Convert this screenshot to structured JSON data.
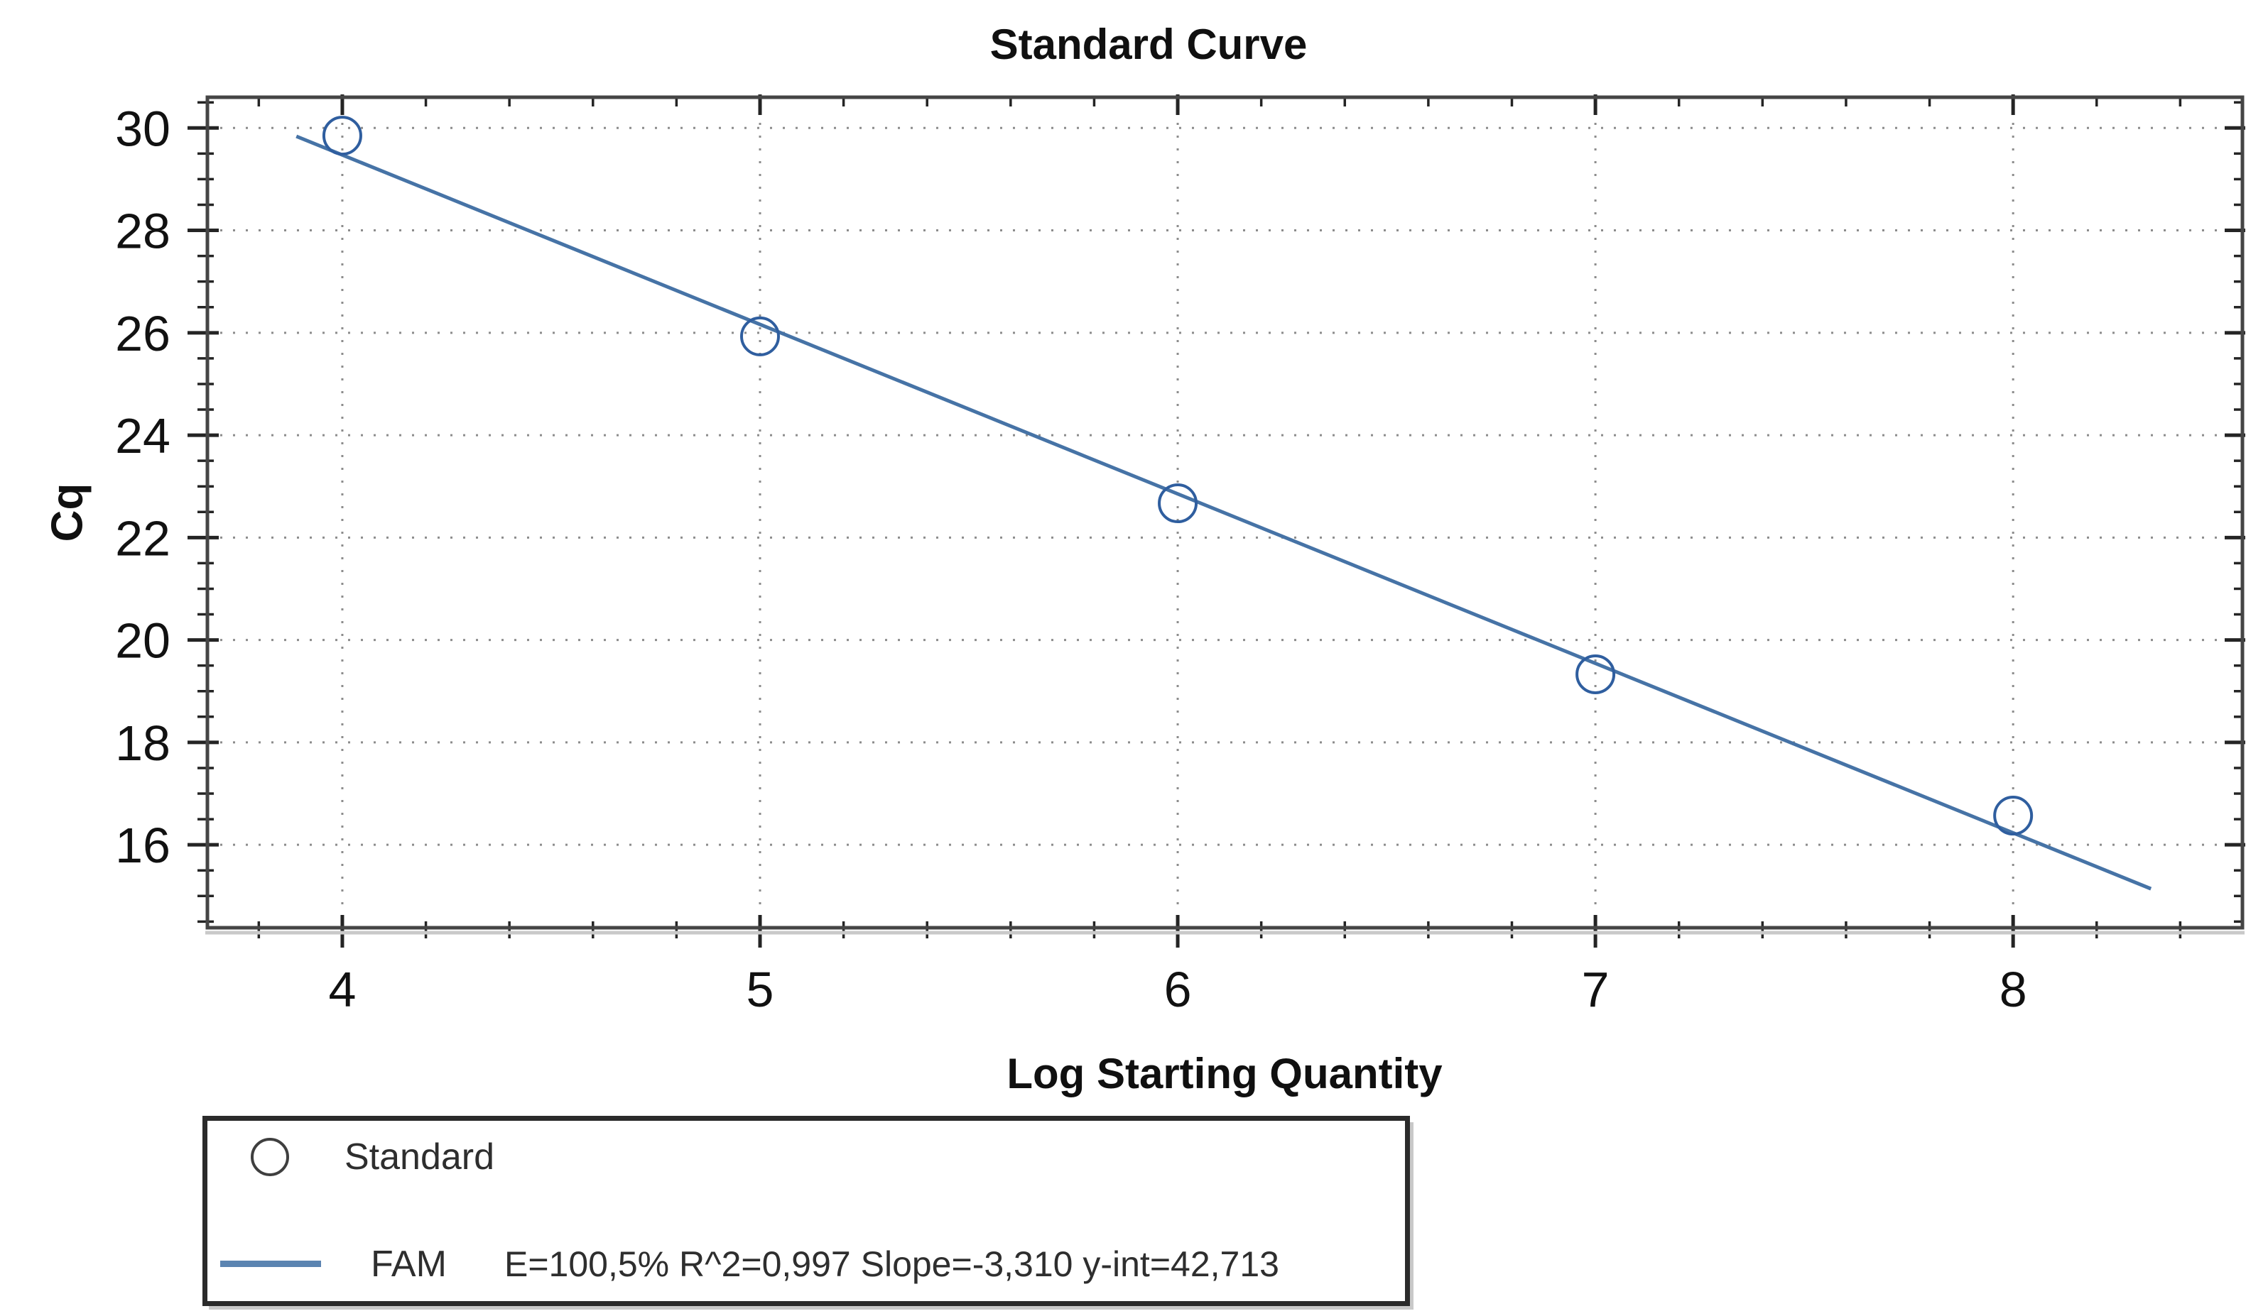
{
  "title": "Standard Curve",
  "chart_data": {
    "type": "scatter",
    "title": "Standard Curve",
    "xlabel": "Log Starting Quantity",
    "ylabel": "Cq",
    "x_range": [
      3.677,
      8.549
    ],
    "y_range": [
      14.38,
      30.6
    ],
    "x_major_ticks": [
      4,
      5,
      6,
      7,
      8
    ],
    "y_major_ticks": [
      16,
      18,
      20,
      22,
      24,
      26,
      28,
      30
    ],
    "x_minor_step": 0.2,
    "y_minor_step": 0.5,
    "grid": "dotted gridlines at major ticks, both axes",
    "legend_position": "bottom-left",
    "series": [
      {
        "name": "Standard",
        "type": "points",
        "marker": "open-circle",
        "color": "#2f5e9f",
        "points": [
          [
            4,
            29.85
          ],
          [
            5,
            25.93
          ],
          [
            6,
            22.67
          ],
          [
            7,
            19.33
          ],
          [
            8,
            16.57
          ]
        ]
      },
      {
        "name": "FAM",
        "type": "trendline",
        "color": "#4673a6",
        "slope": -3.31,
        "y_intercept": 42.713,
        "x_start": 3.89,
        "x_end": 8.33,
        "efficiency_pct": 100.5,
        "r_squared": 0.997,
        "stats": "E=100,5% R^2=0,997 Slope=-3,310 y-int=42,713"
      }
    ]
  },
  "legend": {
    "items": [
      {
        "marker": "open-circle-icon",
        "label": "Standard"
      },
      {
        "marker": "line-icon",
        "label": "FAM",
        "stats": "E=100,5% R^2=0,997 Slope=-3,310 y-int=42,713"
      }
    ]
  },
  "colors": {
    "trendline": "#4673a6",
    "point_stroke": "#2f5e9f",
    "frame": "#454545",
    "tick": "#242424",
    "grid": "#8c8c8c",
    "text": "#111111",
    "axis_shadow": "#c9c9c9"
  }
}
